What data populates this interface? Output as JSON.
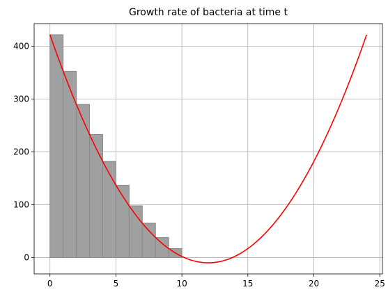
{
  "chart_data": {
    "type": "bar",
    "title": "Growth rate of bacteria at time t",
    "xlabel": "",
    "ylabel": "",
    "xlim": [
      -1.2,
      25.2
    ],
    "ylim": [
      -31,
      443
    ],
    "grid": true,
    "legend": "none",
    "x_ticks": [
      0,
      5,
      10,
      15,
      20,
      25
    ],
    "y_ticks": [
      0,
      100,
      200,
      300,
      400
    ],
    "bars": {
      "x_start": [
        0,
        1,
        2,
        3,
        4,
        5,
        6,
        7,
        8,
        9
      ],
      "width": 1,
      "values": [
        422,
        353,
        290,
        233,
        182,
        137,
        98,
        65,
        38,
        17
      ],
      "color": "#a0a0a0",
      "edgecolor": "#8a8a8a"
    },
    "curve": {
      "type": "line",
      "color": "#ff0000",
      "equation": "y = 3*(t - 12)^2 - 10",
      "domain": [
        0,
        24
      ],
      "x": [
        0,
        2,
        4,
        6,
        8,
        10,
        12,
        14,
        16,
        18,
        20,
        22,
        24
      ],
      "y": [
        422,
        290,
        182,
        98,
        38,
        2,
        -10,
        2,
        38,
        98,
        182,
        290,
        422
      ]
    }
  }
}
